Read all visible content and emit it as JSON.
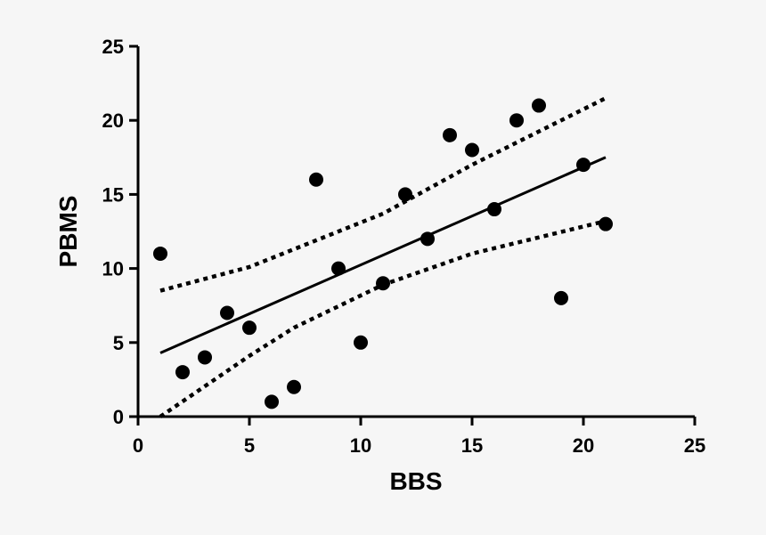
{
  "chart_data": {
    "type": "scatter",
    "x_label": "BBS",
    "y_label": "PBMS",
    "xlim": [
      0,
      25
    ],
    "ylim": [
      0,
      25
    ],
    "xticks": [
      0,
      5,
      10,
      15,
      20,
      25
    ],
    "yticks": [
      0,
      5,
      10,
      15,
      20,
      25
    ],
    "series": [
      {
        "color": "#000000",
        "x": [
          1,
          2,
          3,
          4,
          5,
          6,
          7,
          8,
          9,
          10,
          11,
          12,
          13,
          14,
          15,
          16,
          17,
          18,
          19,
          20,
          21
        ],
        "values": [
          11,
          3,
          4,
          7,
          6,
          1,
          2,
          16,
          10,
          5,
          9,
          15,
          12,
          19,
          18,
          14,
          20,
          21,
          8,
          17,
          13
        ]
      }
    ],
    "lines": [
      {
        "style": "solid",
        "color": "#000000",
        "x": [
          1,
          21
        ],
        "values": [
          4.3,
          17.5
        ]
      },
      {
        "style": "dotted",
        "color": "#000000",
        "x": [
          1,
          5,
          11,
          15,
          21
        ],
        "values": [
          8.5,
          10.1,
          13.7,
          17.0,
          21.5
        ]
      },
      {
        "style": "dotted",
        "color": "#000000",
        "x": [
          1,
          5,
          7,
          11,
          15,
          21
        ],
        "values": [
          0,
          4.1,
          6.0,
          8.9,
          11.0,
          13.2
        ]
      }
    ]
  }
}
